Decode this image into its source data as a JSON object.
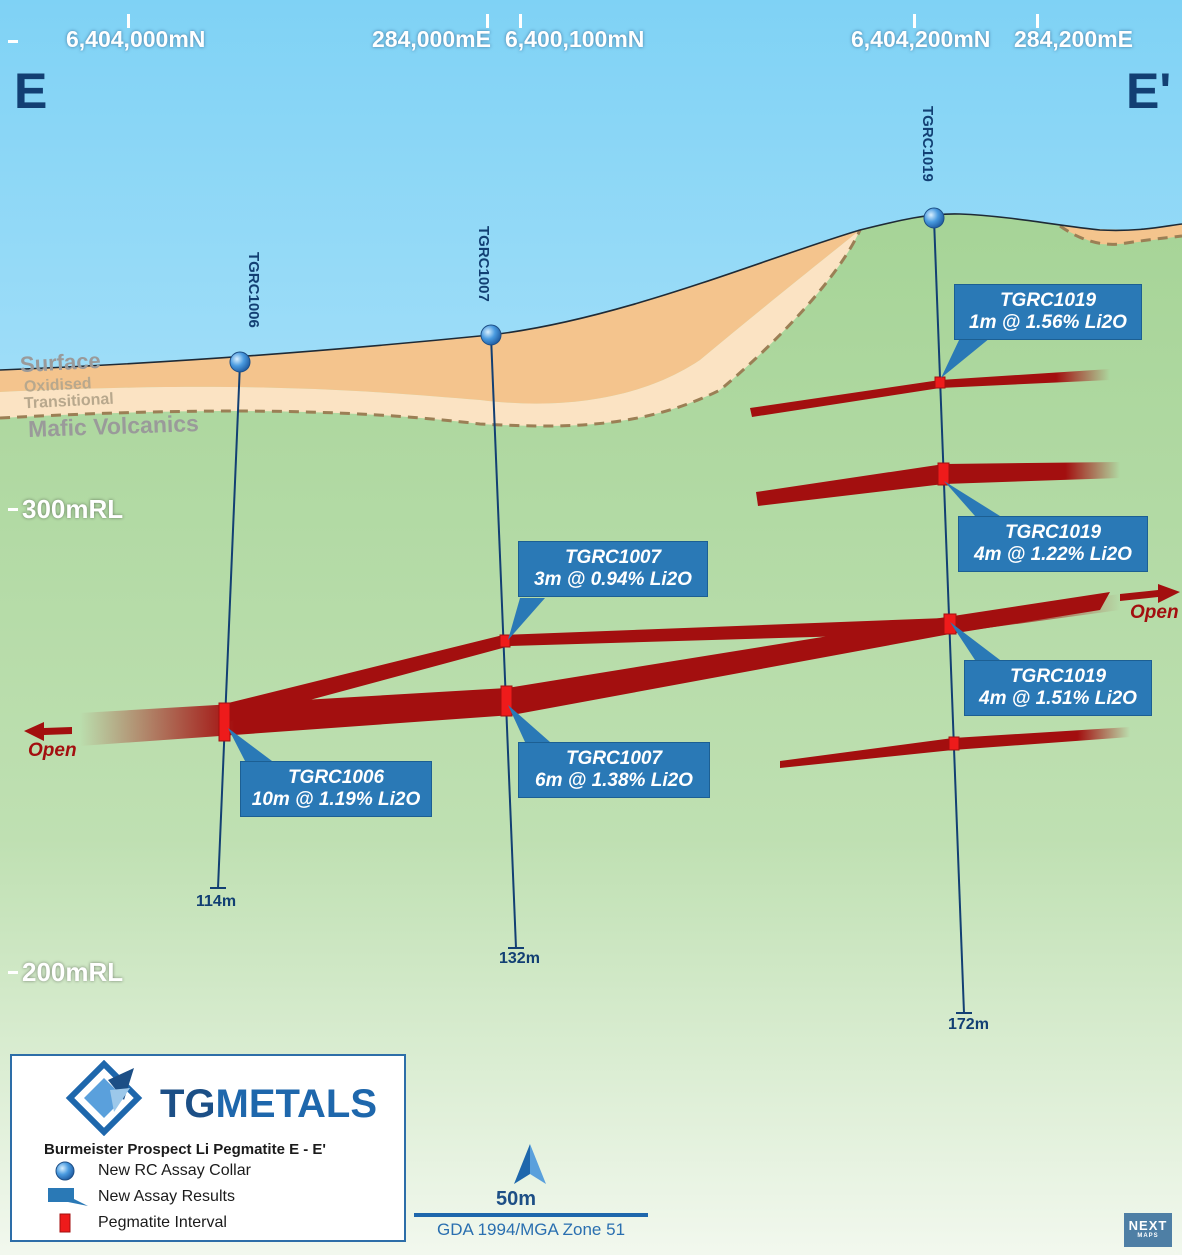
{
  "section": {
    "start_label": "E",
    "end_label": "E'",
    "coordinate_labels": [
      "6,404,000mN",
      "284,000mE",
      "6,400,100mN",
      "6,404,200mN",
      "284,200mE"
    ],
    "rl_labels": [
      "300mRL",
      "200mRL"
    ],
    "layers": [
      "Surface",
      "Oxidised",
      "Transitional",
      "Mafic Volcanics"
    ],
    "open_labels": [
      "Open",
      "Open"
    ]
  },
  "drillholes": [
    {
      "name": "TGRC1006",
      "depth": "114m"
    },
    {
      "name": "TGRC1007",
      "depth": "132m"
    },
    {
      "name": "TGRC1019",
      "depth": "172m"
    }
  ],
  "callouts": [
    {
      "hole": "TGRC1019",
      "result": "1m @ 1.56% Li2O"
    },
    {
      "hole": "TGRC1019",
      "result": "4m @ 1.22% Li2O"
    },
    {
      "hole": "TGRC1007",
      "result": "3m @ 0.94% Li2O"
    },
    {
      "hole": "TGRC1019",
      "result": "4m @ 1.51% Li2O"
    },
    {
      "hole": "TGRC1007",
      "result": "6m @ 1.38% Li2O"
    },
    {
      "hole": "TGRC1006",
      "result": "10m @ 1.19% Li2O"
    }
  ],
  "legend": {
    "brand_tg": "TG",
    "brand_metals": "METALS",
    "title": "Burmeister Prospect Li Pegmatite E - E'",
    "items": [
      "New RC Assay Collar",
      "New Assay Results",
      "Pegmatite Interval"
    ]
  },
  "scale": {
    "label": "50m",
    "datum": "GDA 1994/MGA Zone 51"
  },
  "footer_logo": {
    "line1": "NEXT",
    "line2": "MAPS"
  },
  "colors": {
    "pegmatite": "#a30f0f",
    "callout": "#2a79b6",
    "sky": "#8fd6f5",
    "ground": "#a9d59a",
    "oxidised": "#f4c48d",
    "hole": "#123f73"
  }
}
